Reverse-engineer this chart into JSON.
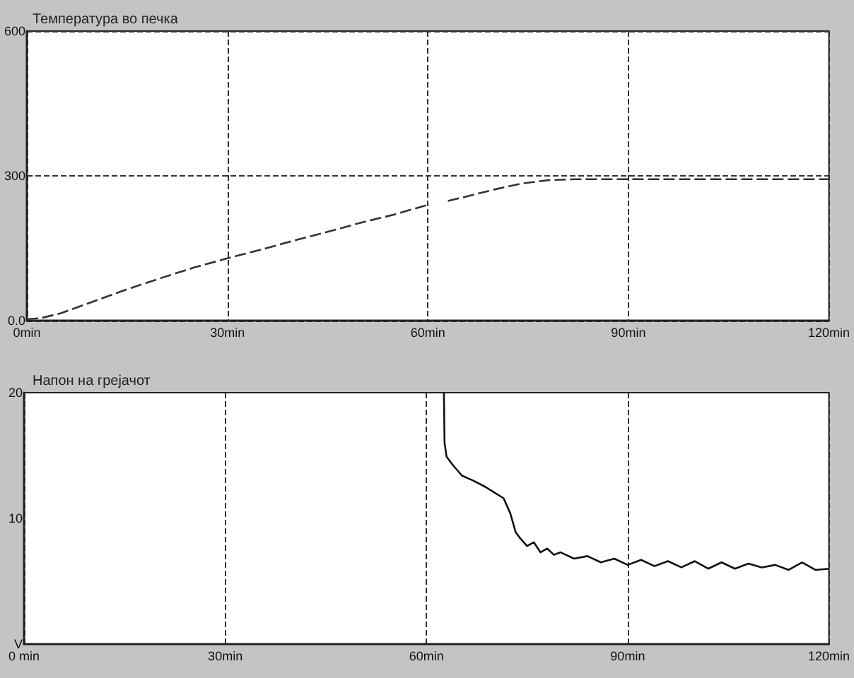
{
  "chart_data": [
    {
      "type": "line",
      "title": "Температура во печка",
      "x": [
        0,
        2,
        5,
        10,
        15,
        20,
        25,
        30,
        35,
        40,
        45,
        50,
        55,
        60,
        61.5,
        63,
        66,
        70,
        74,
        78,
        82,
        90,
        100,
        110,
        120
      ],
      "series": [
        {
          "color": "#333333",
          "values": [
            3,
            5,
            15,
            40,
            65,
            88,
            110,
            129,
            147,
            166,
            184,
            203,
            220,
            240,
            null,
            248,
            258,
            272,
            284,
            291,
            293,
            293,
            293,
            293,
            293
          ]
        }
      ],
      "xlim": [
        0,
        120
      ],
      "xticks": [
        {
          "value": 0,
          "label": "0min"
        },
        {
          "value": 30,
          "label": "30min"
        },
        {
          "value": 60,
          "label": "60min"
        },
        {
          "value": 90,
          "label": "90min"
        },
        {
          "value": 120,
          "label": "120min"
        }
      ],
      "ylim": [
        0,
        600
      ],
      "yticks": [
        {
          "value": 0,
          "label": "0.0"
        },
        300,
        600
      ],
      "grid": true,
      "line_style": "dashed",
      "marker": "none"
    },
    {
      "type": "line",
      "title": "Напон на грејачот",
      "x": [
        62.6,
        62.7,
        63,
        64,
        65.3,
        67,
        68.8,
        70,
        71.5,
        72.5,
        73.3,
        74,
        75,
        76,
        77,
        78,
        79,
        80,
        82,
        84,
        86,
        88,
        90,
        92,
        94,
        96,
        98,
        100,
        102,
        104,
        106,
        108,
        110,
        112,
        114,
        116,
        118,
        120
      ],
      "series": [
        {
          "color": "#111111",
          "values": [
            20,
            16,
            14.9,
            14.2,
            13.4,
            13,
            12.5,
            12.1,
            11.6,
            10.4,
            8.9,
            8.4,
            7.8,
            8.1,
            7.3,
            7.6,
            7.1,
            7.3,
            6.8,
            7,
            6.5,
            6.8,
            6.3,
            6.7,
            6.2,
            6.6,
            6.1,
            6.6,
            6,
            6.5,
            6,
            6.4,
            6.1,
            6.3,
            5.9,
            6.5,
            5.9,
            6
          ]
        }
      ],
      "xlim": [
        0,
        120
      ],
      "xticks": [
        {
          "value": 0,
          "label": "0 min"
        },
        {
          "value": 30,
          "label": "30min"
        },
        {
          "value": 60,
          "label": "60min"
        },
        {
          "value": 90,
          "label": "90min"
        },
        {
          "value": 120,
          "label": "120min"
        }
      ],
      "ylim": [
        0,
        20
      ],
      "yticks": [
        {
          "value": 0,
          "label": "V"
        },
        10,
        20
      ],
      "grid": "x",
      "line_style": "solid",
      "marker": "none"
    }
  ]
}
